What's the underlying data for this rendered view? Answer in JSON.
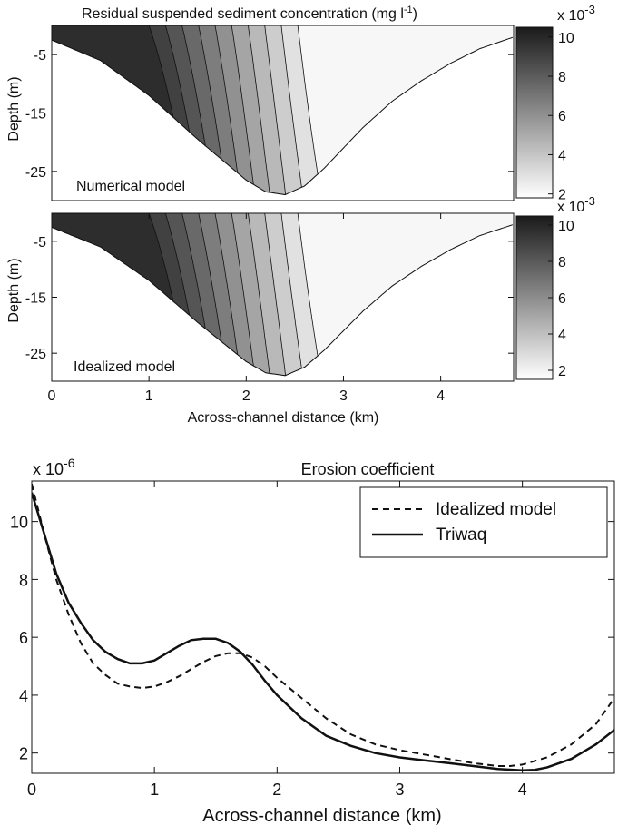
{
  "chart_data": [
    {
      "type": "contour",
      "title_main": "Residual suspended sediment concentration (mg l",
      "title_sup": "-1",
      "title_close": ")",
      "panel_label": "Numerical model",
      "ylabel": "Depth (m)",
      "yticks": [
        "-5",
        "-15",
        "-25"
      ],
      "ylim": [
        -30,
        0
      ],
      "xlim": [
        0,
        4.75
      ],
      "depth_profile": {
        "x": [
          0,
          0.5,
          1.0,
          1.5,
          2.0,
          2.2,
          2.4,
          2.6,
          2.8,
          3.0,
          3.2,
          3.5,
          3.8,
          4.1,
          4.4,
          4.75
        ],
        "depth": [
          -2.5,
          -6,
          -12,
          -19.5,
          -26.5,
          -28.5,
          -29,
          -27.5,
          -24.5,
          -21,
          -17.5,
          -13,
          -9.5,
          -6.5,
          -4,
          -2
        ]
      },
      "contour_count": 10,
      "colorbar": {
        "exponent_label": "x 10",
        "exponent": "-3",
        "ticks": [
          "10",
          "8",
          "6",
          "4",
          "2"
        ],
        "range": [
          1.8,
          10.5
        ],
        "colormap": [
          "#ffffff",
          "#1a1a1a"
        ]
      }
    },
    {
      "type": "contour",
      "panel_label": "Idealized model",
      "ylabel": "Depth (m)",
      "yticks": [
        "-5",
        "-15",
        "-25"
      ],
      "ylim": [
        -30,
        0
      ],
      "xlim": [
        0,
        4.75
      ],
      "xticks": [
        "0",
        "1",
        "2",
        "3",
        "4"
      ],
      "xlabel": "Across-channel distance (km)",
      "depth_profile": {
        "x": [
          0,
          0.5,
          1.0,
          1.5,
          2.0,
          2.2,
          2.4,
          2.6,
          2.8,
          3.0,
          3.2,
          3.5,
          3.8,
          4.1,
          4.4,
          4.75
        ],
        "depth": [
          -2.5,
          -6,
          -12,
          -19.5,
          -26.5,
          -28.5,
          -29,
          -27.5,
          -24.5,
          -21,
          -17.5,
          -13,
          -9.5,
          -6.5,
          -4,
          -2
        ]
      },
      "contour_count": 10,
      "colorbar": {
        "exponent_label": "x 10",
        "exponent": "-3",
        "ticks": [
          "10",
          "8",
          "6",
          "4",
          "2"
        ],
        "range": [
          1.5,
          10.5
        ],
        "colormap": [
          "#ffffff",
          "#1a1a1a"
        ]
      }
    },
    {
      "type": "line",
      "title": "Erosion coefficient",
      "exponent_label": "x 10",
      "exponent": "-6",
      "xlabel": "Across-channel distance (km)",
      "xticks": [
        "0",
        "1",
        "2",
        "3",
        "4"
      ],
      "yticks": [
        "10",
        "8",
        "6",
        "4",
        "2"
      ],
      "xlim": [
        0,
        4.75
      ],
      "ylim": [
        1.3,
        11.4
      ],
      "legend": "top-right",
      "series": [
        {
          "name": "Idealized model",
          "style": "dashed",
          "x": [
            0,
            0.1,
            0.2,
            0.3,
            0.4,
            0.5,
            0.6,
            0.7,
            0.8,
            0.9,
            1.0,
            1.1,
            1.2,
            1.3,
            1.4,
            1.5,
            1.6,
            1.7,
            1.8,
            1.9,
            2.0,
            2.2,
            2.4,
            2.6,
            2.8,
            3.0,
            3.2,
            3.4,
            3.6,
            3.8,
            3.9,
            4.0,
            4.2,
            4.4,
            4.6,
            4.75
          ],
          "y": [
            11.3,
            9.6,
            8.0,
            6.8,
            5.8,
            5.1,
            4.7,
            4.4,
            4.3,
            4.25,
            4.3,
            4.45,
            4.65,
            4.9,
            5.15,
            5.35,
            5.45,
            5.45,
            5.3,
            5.0,
            4.6,
            3.9,
            3.2,
            2.65,
            2.3,
            2.1,
            1.95,
            1.8,
            1.65,
            1.55,
            1.55,
            1.6,
            1.85,
            2.3,
            3.0,
            3.9
          ]
        },
        {
          "name": "Triwaq",
          "style": "solid",
          "x": [
            0,
            0.1,
            0.2,
            0.3,
            0.4,
            0.5,
            0.6,
            0.7,
            0.8,
            0.9,
            1.0,
            1.1,
            1.2,
            1.3,
            1.4,
            1.5,
            1.6,
            1.7,
            1.8,
            1.9,
            2.0,
            2.2,
            2.4,
            2.6,
            2.8,
            3.0,
            3.2,
            3.4,
            3.6,
            3.8,
            4.0,
            4.1,
            4.2,
            4.3,
            4.4,
            4.6,
            4.75
          ],
          "y": [
            11.0,
            9.6,
            8.2,
            7.2,
            6.5,
            5.9,
            5.5,
            5.25,
            5.1,
            5.1,
            5.2,
            5.45,
            5.7,
            5.9,
            5.95,
            5.95,
            5.8,
            5.5,
            5.05,
            4.5,
            4.0,
            3.2,
            2.6,
            2.25,
            2.0,
            1.85,
            1.75,
            1.65,
            1.55,
            1.45,
            1.4,
            1.42,
            1.5,
            1.65,
            1.8,
            2.3,
            2.8
          ]
        }
      ]
    }
  ]
}
